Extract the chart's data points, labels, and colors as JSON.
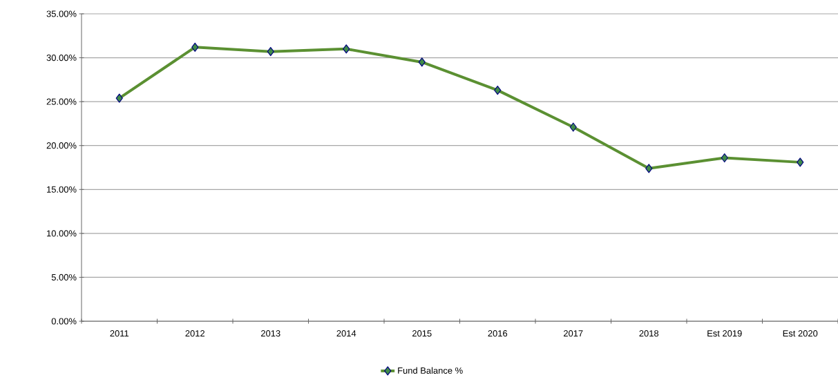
{
  "chart_data": {
    "type": "line",
    "categories": [
      "2011",
      "2012",
      "2013",
      "2014",
      "2015",
      "2016",
      "2017",
      "2018",
      "Est 2019",
      "Est 2020"
    ],
    "series": [
      {
        "name": "Fund Balance %",
        "color": "#5b9032",
        "values": [
          25.4,
          31.2,
          30.7,
          31.0,
          29.5,
          26.3,
          22.1,
          17.4,
          18.6,
          18.1
        ]
      }
    ],
    "ylim": [
      0,
      35
    ],
    "yticks": [
      {
        "value": 0,
        "label": "0.00%"
      },
      {
        "value": 5,
        "label": "5.00%"
      },
      {
        "value": 10,
        "label": "10.00%"
      },
      {
        "value": 15,
        "label": "15.00%"
      },
      {
        "value": 20,
        "label": "20.00%"
      },
      {
        "value": 25,
        "label": "25.00%"
      },
      {
        "value": 30,
        "label": "30.00%"
      },
      {
        "value": 35,
        "label": "35.00%"
      }
    ],
    "grid": "y",
    "legend": "bottom",
    "marker": "diamond",
    "line_style": "solid"
  }
}
